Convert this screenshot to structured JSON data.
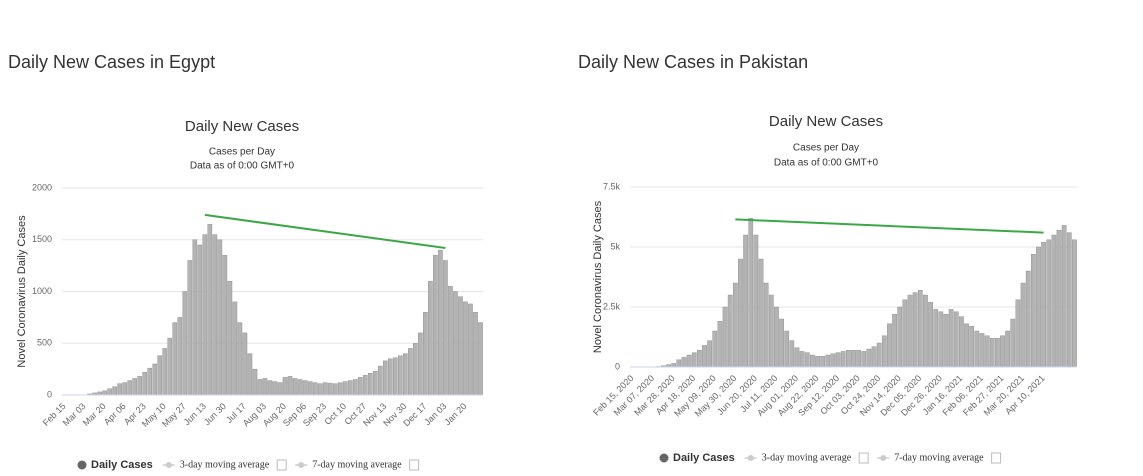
{
  "chart_data": [
    {
      "type": "bar",
      "heading": "Daily New Cases in Egypt",
      "title": "Daily New Cases",
      "subtitle": "Cases per Day",
      "subtitle2": "Data as of 0:00 GMT+0",
      "y_label": "Novel Coronavirus Daily Cases",
      "categories": [
        "Feb 15",
        null,
        null,
        null,
        "Mar 03",
        null,
        null,
        null,
        "Mar 20",
        null,
        null,
        null,
        "Apr 06",
        null,
        null,
        null,
        "Apr 23",
        null,
        null,
        null,
        "May 10",
        null,
        null,
        null,
        "May 27",
        null,
        null,
        null,
        "Jun 13",
        null,
        null,
        null,
        "Jun 30",
        null,
        null,
        null,
        "Jul 17",
        null,
        null,
        null,
        "Aug 03",
        null,
        null,
        null,
        "Aug 20",
        null,
        null,
        null,
        "Sep 06",
        null,
        null,
        null,
        "Sep 23",
        null,
        null,
        null,
        "Oct 10",
        null,
        null,
        null,
        "Oct 27",
        null,
        null,
        null,
        "Nov 13",
        null,
        null,
        null,
        "Nov 30",
        null,
        null,
        null,
        "Dec 17",
        null,
        null,
        null,
        "Jan 03",
        null,
        null,
        null,
        "Jan 20",
        null,
        null,
        null
      ],
      "series": [
        {
          "name": "Daily Cases",
          "color": "#b3b3b3",
          "values": [
            0,
            0,
            0,
            1,
            2,
            10,
            20,
            30,
            40,
            60,
            80,
            110,
            120,
            140,
            160,
            180,
            220,
            260,
            300,
            380,
            450,
            550,
            700,
            750,
            1000,
            1300,
            1500,
            1450,
            1550,
            1650,
            1550,
            1500,
            1350,
            1100,
            900,
            700,
            600,
            400,
            250,
            150,
            160,
            140,
            130,
            120,
            170,
            180,
            160,
            150,
            140,
            130,
            120,
            110,
            120,
            115,
            110,
            120,
            130,
            140,
            150,
            170,
            190,
            210,
            230,
            280,
            330,
            350,
            360,
            380,
            400,
            450,
            500,
            600,
            800,
            1100,
            1350,
            1400,
            1300,
            1050,
            1000,
            950,
            900,
            880,
            800,
            700
          ]
        }
      ],
      "legend": {
        "inactive": [
          "3-day moving average",
          "7-day moving average"
        ]
      },
      "annotation_line": {
        "color": "#3aa845",
        "from": {
          "category": "Jun 13",
          "value": 1740
        },
        "to": {
          "category": "Jan 03",
          "value": 1420
        }
      },
      "ylim": [
        0,
        2000
      ],
      "yticks": [
        0,
        500,
        1000,
        1500,
        2000
      ],
      "grid": true
    },
    {
      "type": "bar",
      "heading": "Daily New Cases in Pakistan",
      "title": "Daily New Cases",
      "subtitle": "Cases per Day",
      "subtitle2": "Data as of 0:00 GMT+0",
      "y_label": "Novel Coronavirus Daily Cases",
      "categories": [
        "Feb 15, 2020",
        null,
        null,
        null,
        "Mar 07, 2020",
        null,
        null,
        null,
        "Mar 28, 2020",
        null,
        null,
        null,
        "Apr 18, 2020",
        null,
        null,
        null,
        "May 09, 2020",
        null,
        null,
        null,
        "May 30, 2020",
        null,
        null,
        null,
        "Jun 20, 2020",
        null,
        null,
        null,
        "Jul 11, 2020",
        null,
        null,
        null,
        "Aug 01, 2020",
        null,
        null,
        null,
        "Aug 22, 2020",
        null,
        null,
        null,
        "Sep 12, 2020",
        null,
        null,
        null,
        "Oct 03, 2020",
        null,
        null,
        null,
        "Oct 24, 2020",
        null,
        null,
        null,
        "Nov 14, 2020",
        null,
        null,
        null,
        "Dec 05, 2020",
        null,
        null,
        null,
        "Dec 26, 2020",
        null,
        null,
        null,
        "Jan 16, 2021",
        null,
        null,
        null,
        "Feb 06, 2021",
        null,
        null,
        null,
        "Feb 27, 2021",
        null,
        null,
        null,
        "Mar 20, 2021",
        null,
        null,
        null,
        "Apr 10, 2021",
        null,
        null,
        null,
        null,
        null,
        null
      ],
      "series": [
        {
          "name": "Daily Cases",
          "color": "#b3b3b3",
          "values": [
            0,
            0,
            0,
            0,
            5,
            20,
            50,
            100,
            150,
            300,
            400,
            500,
            600,
            700,
            900,
            1100,
            1500,
            1900,
            2500,
            3000,
            3500,
            4500,
            5500,
            6200,
            5500,
            4500,
            3500,
            3000,
            2500,
            2000,
            1500,
            1100,
            800,
            650,
            600,
            500,
            450,
            450,
            500,
            550,
            600,
            650,
            700,
            700,
            700,
            650,
            750,
            850,
            1000,
            1300,
            1800,
            2200,
            2500,
            2800,
            3000,
            3100,
            3200,
            3000,
            2700,
            2400,
            2300,
            2200,
            2400,
            2300,
            2100,
            1800,
            1700,
            1500,
            1400,
            1300,
            1200,
            1200,
            1300,
            1500,
            2000,
            2800,
            3500,
            4000,
            4700,
            5000,
            5200,
            5300,
            5500,
            5700,
            5900,
            5600,
            5300
          ]
        }
      ],
      "legend": {
        "inactive": [
          "3-day moving average",
          "7-day moving average"
        ]
      },
      "annotation_line": {
        "color": "#3aa845",
        "from": {
          "category": "May 30, 2020",
          "value": 6150
        },
        "to": {
          "category": "Apr 10, 2021",
          "value": 5600
        }
      },
      "ylim": [
        0,
        7500
      ],
      "yticks": [
        0,
        {
          "value": 2500,
          "label": "2.5k"
        },
        {
          "value": 5000,
          "label": "5k"
        },
        {
          "value": 7500,
          "label": "7.5k"
        }
      ],
      "grid": true
    }
  ]
}
